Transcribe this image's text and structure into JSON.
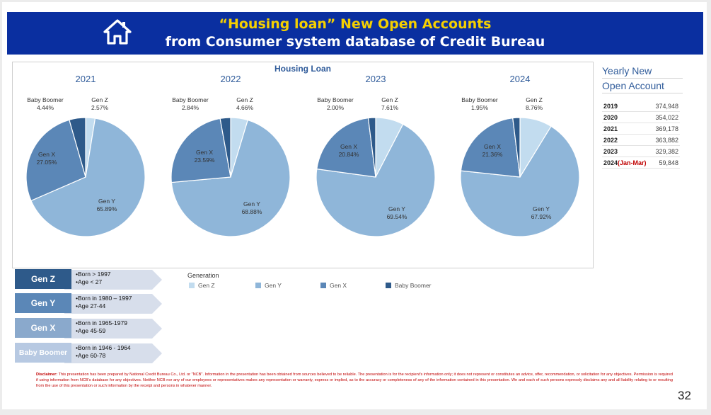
{
  "banner": {
    "line1": "“Housing loan” New Open Accounts",
    "line2": "from Consumer system database of Credit Bureau",
    "icon": "home-icon"
  },
  "colors": {
    "banner": "#0a2fa0",
    "gen_z": "#c2dcef",
    "gen_y": "#8fb6d9",
    "gen_x": "#5b87b7",
    "baby_boomer": "#2e5a8a"
  },
  "chart_data": {
    "type": "pie",
    "title": "Housing Loan",
    "legend_title": "Generation",
    "legend": [
      "Gen Z",
      "Gen Y",
      "Gen X",
      "Baby Boomer"
    ],
    "legend_position": "bottom",
    "charts": [
      {
        "year": "2021",
        "values": {
          "Gen Z": 2.57,
          "Gen Y": 65.89,
          "Gen X": 27.05,
          "Baby Boomer": 4.44
        },
        "labels": {
          "Gen Z": "2.57%",
          "Gen Y": "65.89%",
          "Gen X": "27.05%",
          "Baby Boomer": "4.44%"
        }
      },
      {
        "year": "2022",
        "values": {
          "Gen Z": 4.66,
          "Gen Y": 68.88,
          "Gen X": 23.59,
          "Baby Boomer": 2.84
        },
        "labels": {
          "Gen Z": "4.66%",
          "Gen Y": "68.88%",
          "Gen X": "23.59%",
          "Baby Boomer": "2.84%"
        }
      },
      {
        "year": "2023",
        "values": {
          "Gen Z": 7.61,
          "Gen Y": 69.54,
          "Gen X": 20.84,
          "Baby Boomer": 2.0
        },
        "labels": {
          "Gen Z": "7.61%",
          "Gen Y": "69.54%",
          "Gen X": "20.84%",
          "Baby Boomer": "2.00%"
        }
      },
      {
        "year": "2024",
        "values": {
          "Gen Z": 8.76,
          "Gen Y": 67.92,
          "Gen X": 21.36,
          "Baby Boomer": 1.95
        },
        "labels": {
          "Gen Z": "8.76%",
          "Gen Y": "67.92%",
          "Gen X": "21.36%",
          "Baby Boomer": "1.95%"
        }
      }
    ]
  },
  "yearly": {
    "title_line1": "Yearly New",
    "title_line2": "Open Account",
    "rows": [
      {
        "year": "2019",
        "value": "374,948"
      },
      {
        "year": "2020",
        "value": "354,022"
      },
      {
        "year": "2021",
        "value": "369,178"
      },
      {
        "year": "2022",
        "value": "363,882"
      },
      {
        "year": "2023",
        "value": "329,382"
      },
      {
        "year": "2024",
        "suffix": "(Jan-Mar)",
        "value": "59,848"
      }
    ]
  },
  "generations": [
    {
      "name": "Gen Z",
      "line1": "•Born > 1997",
      "line2": "•Age  < 27"
    },
    {
      "name": "Gen Y",
      "line1": "•Born in 1980 – 1997",
      "line2": "•Age 27-44"
    },
    {
      "name": "Gen X",
      "line1": "•Born in 1965-1979",
      "line2": "•Age 45-59"
    },
    {
      "name": "Baby Boomer",
      "line1": "•Born in 1946 - 1964",
      "line2": "•Age 60-78"
    }
  ],
  "disclaimer": {
    "label": "Disclaimer:",
    "text": " This presentation has been prepared by National Credit Bureau Co., Ltd. or \"NCB\". Information in the presentation has been obtained from sources believed to be reliable. The presentation is for the recipient's information only; it does not represent or constitutes an advice, offer, recommendation, or solicitation for any objectives. Permission is required if using information from NCB's database for any objectives. Neither NCB nor any of our employees or representatives makes any representation or warranty, express or implied, as to the accuracy or completeness of any of the information contained in this presentation. We and each of such persons expressly disclaims any and all liability relating to or resulting from the use of this presentation or such information by the receipt and persons in whatever manner."
  },
  "page_number": "32"
}
